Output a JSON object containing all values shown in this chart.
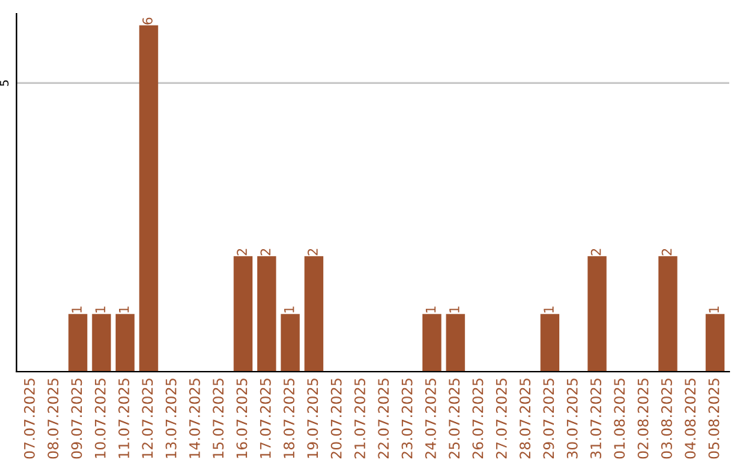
{
  "chart_data": {
    "type": "bar",
    "categories": [
      "07.07.2025",
      "08.07.2025",
      "09.07.2025",
      "10.07.2025",
      "11.07.2025",
      "12.07.2025",
      "13.07.2025",
      "14.07.2025",
      "15.07.2025",
      "16.07.2025",
      "17.07.2025",
      "18.07.2025",
      "19.07.2025",
      "20.07.2025",
      "21.07.2025",
      "22.07.2025",
      "23.07.2025",
      "24.07.2025",
      "25.07.2025",
      "26.07.2025",
      "27.07.2025",
      "28.07.2025",
      "29.07.2025",
      "30.07.2025",
      "31.07.2025",
      "01.08.2025",
      "02.08.2025",
      "03.08.2025",
      "04.08.2025",
      "05.08.2025"
    ],
    "values": [
      0,
      0,
      1,
      1,
      1,
      6,
      0,
      0,
      0,
      2,
      2,
      1,
      2,
      0,
      0,
      0,
      0,
      1,
      1,
      0,
      0,
      0,
      1,
      0,
      2,
      0,
      0,
      2,
      0,
      1
    ],
    "value_labels": [
      null,
      null,
      "1",
      "1",
      "1",
      "6",
      null,
      null,
      null,
      "2",
      "2",
      "1",
      "2",
      null,
      null,
      null,
      null,
      "1",
      "1",
      null,
      null,
      null,
      "1",
      null,
      "2",
      null,
      null,
      "2",
      null,
      "1"
    ],
    "color": "#a0522d",
    "ylim": [
      0,
      6.2
    ],
    "yticks": [
      5
    ],
    "grid": "y",
    "legend": false
  }
}
